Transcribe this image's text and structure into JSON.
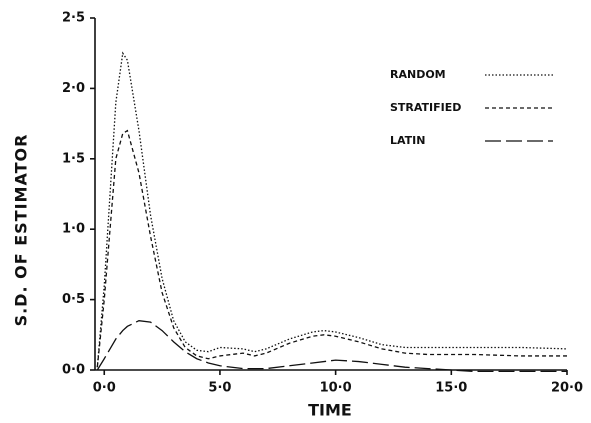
{
  "chart_data": {
    "type": "line",
    "x_label": "TIME",
    "y_label": "S.D. OF ESTIMATOR",
    "x": [
      -0.3,
      0,
      0.5,
      0.8,
      1,
      1.5,
      2,
      2.5,
      3,
      3.5,
      4,
      4.5,
      5,
      6,
      6.5,
      7,
      8,
      9,
      9.5,
      10,
      11,
      12,
      13,
      14,
      15,
      16,
      18,
      20
    ],
    "series": [
      {
        "name": "RANDOM",
        "color": "#111111",
        "dash": "1.5 2",
        "values": [
          0.02,
          0.6,
          1.9,
          2.25,
          2.2,
          1.7,
          1.1,
          0.65,
          0.35,
          0.2,
          0.14,
          0.13,
          0.16,
          0.15,
          0.13,
          0.15,
          0.22,
          0.27,
          0.28,
          0.27,
          0.23,
          0.18,
          0.16,
          0.16,
          0.16,
          0.16,
          0.16,
          0.15
        ]
      },
      {
        "name": "STRATIFIED",
        "color": "#111111",
        "dash": "4 3",
        "values": [
          0.02,
          0.5,
          1.5,
          1.68,
          1.7,
          1.4,
          0.95,
          0.55,
          0.3,
          0.16,
          0.1,
          0.08,
          0.1,
          0.12,
          0.1,
          0.12,
          0.19,
          0.24,
          0.25,
          0.24,
          0.2,
          0.15,
          0.12,
          0.11,
          0.11,
          0.11,
          0.1,
          0.1
        ]
      },
      {
        "name": "LATIN",
        "color": "#111111",
        "dash": "16 5",
        "values": [
          0.0,
          0.08,
          0.22,
          0.28,
          0.31,
          0.35,
          0.34,
          0.28,
          0.2,
          0.13,
          0.08,
          0.05,
          0.03,
          0.01,
          0.01,
          0.01,
          0.03,
          0.05,
          0.06,
          0.07,
          0.06,
          0.04,
          0.02,
          0.01,
          0.0,
          -0.01,
          -0.01,
          -0.01
        ]
      }
    ],
    "xlim": [
      -0.4,
      20
    ],
    "ylim": [
      0,
      2.5
    ],
    "xticks": [
      {
        "value": 0,
        "label": "0·0"
      },
      {
        "value": 5,
        "label": "5·0"
      },
      {
        "value": 10,
        "label": "10·0"
      },
      {
        "value": 15,
        "label": "15·0"
      },
      {
        "value": 20,
        "label": "20·0"
      }
    ],
    "yticks": [
      {
        "value": 0,
        "label": "0·0"
      },
      {
        "value": 0.5,
        "label": "0·5"
      },
      {
        "value": 1,
        "label": "1·0"
      },
      {
        "value": 1.5,
        "label": "1·5"
      },
      {
        "value": 2,
        "label": "2·0"
      },
      {
        "value": 2.5,
        "label": "2·5"
      }
    ],
    "legend": "top-right"
  }
}
